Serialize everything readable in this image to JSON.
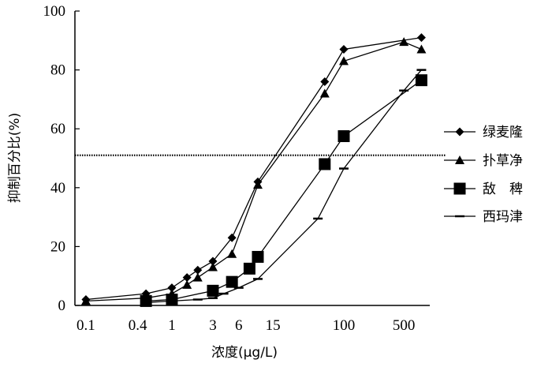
{
  "chart_data": {
    "type": "line",
    "xlabel": "浓度(μg/L)",
    "ylabel": "抑制百分比(%)",
    "x_scale": "log",
    "ylim": [
      0,
      100
    ],
    "x_ticks": [
      "0.1",
      "0.4",
      "1",
      "3",
      "6",
      "15",
      "100",
      "500"
    ],
    "x_tick_values": [
      0.1,
      0.4,
      1,
      3,
      6,
      15,
      100,
      500
    ],
    "y_ticks": [
      "0",
      "20",
      "40",
      "60",
      "80",
      "100"
    ],
    "y_tick_values": [
      0,
      20,
      40,
      60,
      80,
      100
    ],
    "reference_line": {
      "y": 51,
      "style": "dotted"
    },
    "legend_position": "right",
    "series": [
      {
        "name": "绿麦隆",
        "marker": "diamond",
        "x": [
          0.1,
          0.5,
          1,
          1.5,
          2,
          3,
          5,
          10,
          60,
          100,
          800
        ],
        "y": [
          2,
          4,
          6,
          9.5,
          12,
          15,
          23,
          42,
          76,
          87,
          91
        ]
      },
      {
        "name": "扑草净",
        "marker": "triangle",
        "x": [
          0.1,
          0.5,
          1,
          1.5,
          2,
          3,
          5,
          10,
          60,
          100,
          500,
          800
        ],
        "y": [
          1.5,
          2.5,
          4,
          7,
          9.5,
          13,
          17.5,
          41,
          72,
          83,
          89.5,
          87
        ]
      },
      {
        "name": "敌　稗",
        "marker": "square",
        "x": [
          0.5,
          1,
          3,
          5,
          8,
          10,
          60,
          100,
          800
        ],
        "y": [
          1.5,
          2,
          5,
          8,
          12.5,
          16.5,
          48,
          57.5,
          76.5
        ]
      },
      {
        "name": "西玛津",
        "marker": "dash",
        "x": [
          0.5,
          1,
          2,
          3,
          4,
          6,
          10,
          50,
          100,
          500,
          800
        ],
        "y": [
          1,
          1.5,
          2,
          2.5,
          4,
          6,
          9,
          29.5,
          46.5,
          73,
          80
        ]
      }
    ]
  },
  "colors": {
    "line": "#000000",
    "background": "#ffffff"
  }
}
